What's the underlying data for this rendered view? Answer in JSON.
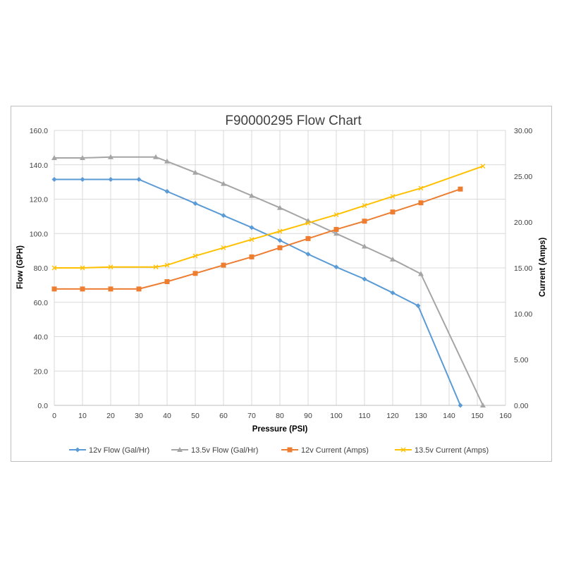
{
  "chart_data": {
    "type": "line",
    "title": "F90000295  Flow Chart",
    "xlabel": "Pressure (PSI)",
    "ylabel": "Flow (GPH)",
    "y2label": "Current (Amps)",
    "xlim": [
      0,
      160
    ],
    "ylim": [
      0,
      160
    ],
    "y2lim": [
      0,
      30
    ],
    "x_ticks": [
      "0",
      "10",
      "20",
      "30",
      "40",
      "50",
      "60",
      "70",
      "80",
      "90",
      "100",
      "110",
      "120",
      "130",
      "140",
      "150",
      "160"
    ],
    "y_ticks": [
      "0.0",
      "20.0",
      "40.0",
      "60.0",
      "80.0",
      "100.0",
      "120.0",
      "140.0",
      "160.0"
    ],
    "y2_ticks": [
      "0.00",
      "5.00",
      "10.00",
      "15.00",
      "20.00",
      "25.00",
      "30.00"
    ],
    "grid": true,
    "legend_position": "bottom",
    "series": [
      {
        "name": "12v Flow (Gal/Hr)",
        "axis": "left",
        "color": "#5b9bd5",
        "marker": "diamond",
        "x": [
          0,
          10,
          20,
          30,
          40,
          50,
          60,
          70,
          80,
          90,
          100,
          110,
          120,
          129,
          144
        ],
        "y": [
          131.5,
          131.5,
          131.5,
          131.5,
          124.5,
          117.5,
          110.5,
          103.5,
          96,
          88,
          80.5,
          73.5,
          65.5,
          58,
          0
        ]
      },
      {
        "name": "13.5v Flow (Gal/Hr)",
        "axis": "left",
        "color": "#a5a5a5",
        "marker": "triangle",
        "x": [
          0,
          10,
          20,
          36,
          40,
          50,
          60,
          70,
          80,
          90,
          100,
          110,
          120,
          130,
          152
        ],
        "y": [
          144,
          144,
          144.5,
          144.5,
          142,
          135.5,
          129,
          122,
          115,
          107.5,
          100,
          92.5,
          85,
          76.5,
          0
        ]
      },
      {
        "name": "12v Current (Amps)",
        "axis": "right",
        "color": "#ed7d31",
        "marker": "square",
        "x": [
          0,
          10,
          20,
          30,
          40,
          50,
          60,
          70,
          80,
          90,
          100,
          110,
          120,
          130,
          144
        ],
        "y": [
          12.7,
          12.7,
          12.7,
          12.7,
          13.5,
          14.4,
          15.3,
          16.2,
          17.2,
          18.2,
          19.2,
          20.1,
          21.1,
          22.1,
          23.6
        ]
      },
      {
        "name": "13.5v Current (Amps)",
        "axis": "right",
        "color": "#ffc000",
        "marker": "cross",
        "x": [
          0,
          10,
          20,
          36,
          40,
          50,
          60,
          70,
          80,
          90,
          100,
          110,
          120,
          130,
          152
        ],
        "y": [
          15.0,
          15.0,
          15.1,
          15.1,
          15.3,
          16.3,
          17.2,
          18.1,
          19.0,
          19.9,
          20.8,
          21.8,
          22.8,
          23.7,
          26.1
        ]
      }
    ]
  }
}
